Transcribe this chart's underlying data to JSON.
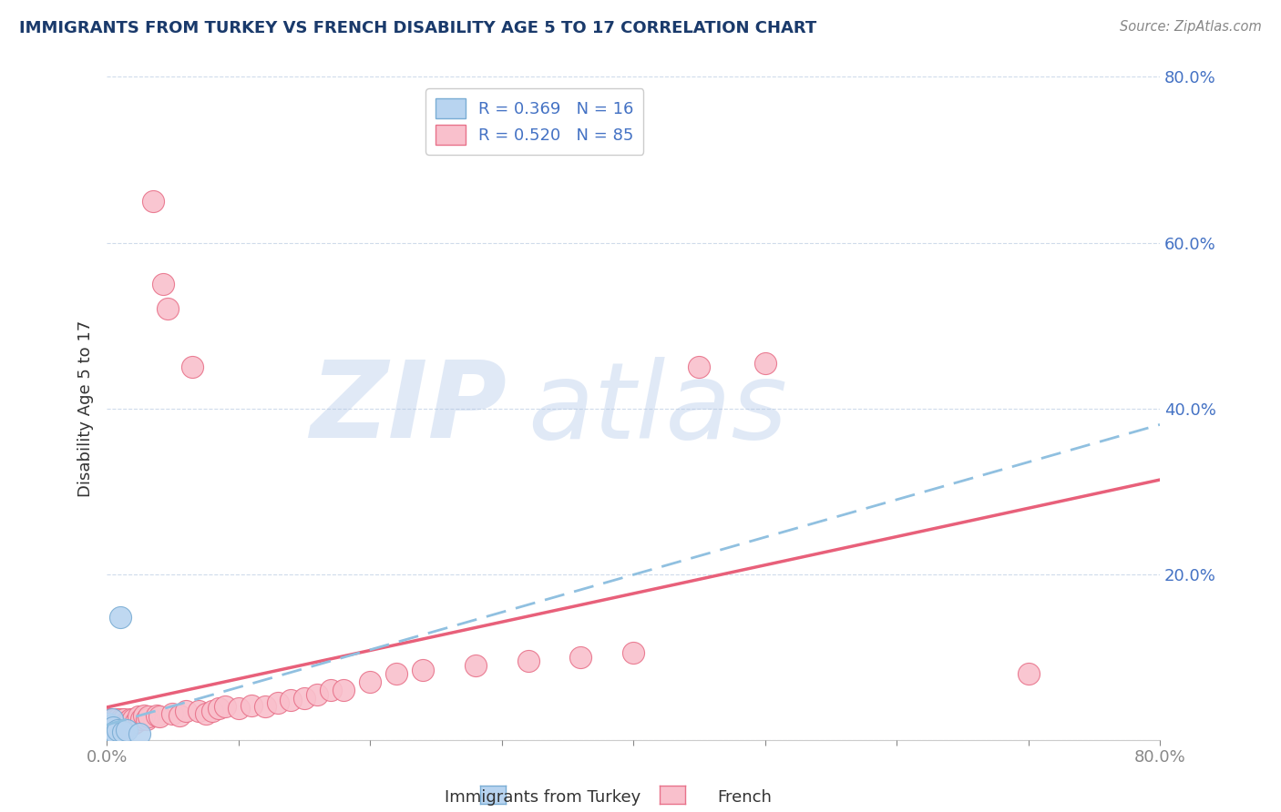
{
  "title": "IMMIGRANTS FROM TURKEY VS FRENCH DISABILITY AGE 5 TO 17 CORRELATION CHART",
  "source": "Source: ZipAtlas.com",
  "ylabel": "Disability Age 5 to 17",
  "xlim": [
    0,
    0.8
  ],
  "ylim": [
    0,
    0.8
  ],
  "watermark_line1": "ZIP",
  "watermark_line2": "atlas",
  "title_color": "#1a3a6b",
  "axis_color": "#4472c4",
  "turkey_color": "#b8d4f0",
  "turkey_edge_color": "#7aadd4",
  "french_color": "#f9c0cc",
  "french_edge_color": "#e8728a",
  "french_line_color": "#e8607a",
  "turkey_line_color": "#90c0e0",
  "turkey_R": 0.369,
  "turkey_N": 16,
  "french_R": 0.52,
  "french_N": 85,
  "turkey_x": [
    0.001,
    0.001,
    0.002,
    0.002,
    0.003,
    0.003,
    0.004,
    0.004,
    0.005,
    0.006,
    0.007,
    0.008,
    0.01,
    0.012,
    0.015,
    0.025
  ],
  "turkey_y": [
    0.01,
    0.02,
    0.008,
    0.015,
    0.012,
    0.018,
    0.01,
    0.025,
    0.015,
    0.01,
    0.008,
    0.012,
    0.148,
    0.01,
    0.012,
    0.008
  ],
  "french_x": [
    0.001,
    0.001,
    0.001,
    0.002,
    0.002,
    0.002,
    0.002,
    0.003,
    0.003,
    0.003,
    0.003,
    0.004,
    0.004,
    0.004,
    0.004,
    0.005,
    0.005,
    0.005,
    0.006,
    0.006,
    0.006,
    0.007,
    0.007,
    0.008,
    0.008,
    0.008,
    0.009,
    0.009,
    0.01,
    0.01,
    0.01,
    0.011,
    0.011,
    0.012,
    0.012,
    0.013,
    0.013,
    0.014,
    0.015,
    0.015,
    0.016,
    0.017,
    0.018,
    0.018,
    0.02,
    0.02,
    0.022,
    0.024,
    0.026,
    0.028,
    0.03,
    0.032,
    0.035,
    0.038,
    0.04,
    0.043,
    0.046,
    0.05,
    0.055,
    0.06,
    0.065,
    0.07,
    0.075,
    0.08,
    0.085,
    0.09,
    0.1,
    0.11,
    0.12,
    0.13,
    0.14,
    0.15,
    0.16,
    0.17,
    0.18,
    0.2,
    0.22,
    0.24,
    0.28,
    0.32,
    0.36,
    0.4,
    0.45,
    0.5,
    0.7
  ],
  "french_y": [
    0.01,
    0.015,
    0.02,
    0.008,
    0.012,
    0.018,
    0.025,
    0.01,
    0.015,
    0.02,
    0.025,
    0.008,
    0.012,
    0.018,
    0.022,
    0.01,
    0.015,
    0.02,
    0.012,
    0.018,
    0.025,
    0.01,
    0.015,
    0.012,
    0.018,
    0.025,
    0.015,
    0.02,
    0.01,
    0.015,
    0.022,
    0.018,
    0.025,
    0.015,
    0.02,
    0.018,
    0.025,
    0.02,
    0.015,
    0.022,
    0.02,
    0.018,
    0.022,
    0.025,
    0.02,
    0.025,
    0.022,
    0.028,
    0.025,
    0.03,
    0.025,
    0.028,
    0.65,
    0.03,
    0.028,
    0.55,
    0.52,
    0.032,
    0.03,
    0.035,
    0.45,
    0.035,
    0.032,
    0.035,
    0.038,
    0.04,
    0.038,
    0.042,
    0.04,
    0.045,
    0.048,
    0.05,
    0.055,
    0.06,
    0.06,
    0.07,
    0.08,
    0.085,
    0.09,
    0.095,
    0.1,
    0.105,
    0.45,
    0.455,
    0.08
  ],
  "french_line_end_y": 0.38,
  "turkey_line_end_y": 0.4
}
